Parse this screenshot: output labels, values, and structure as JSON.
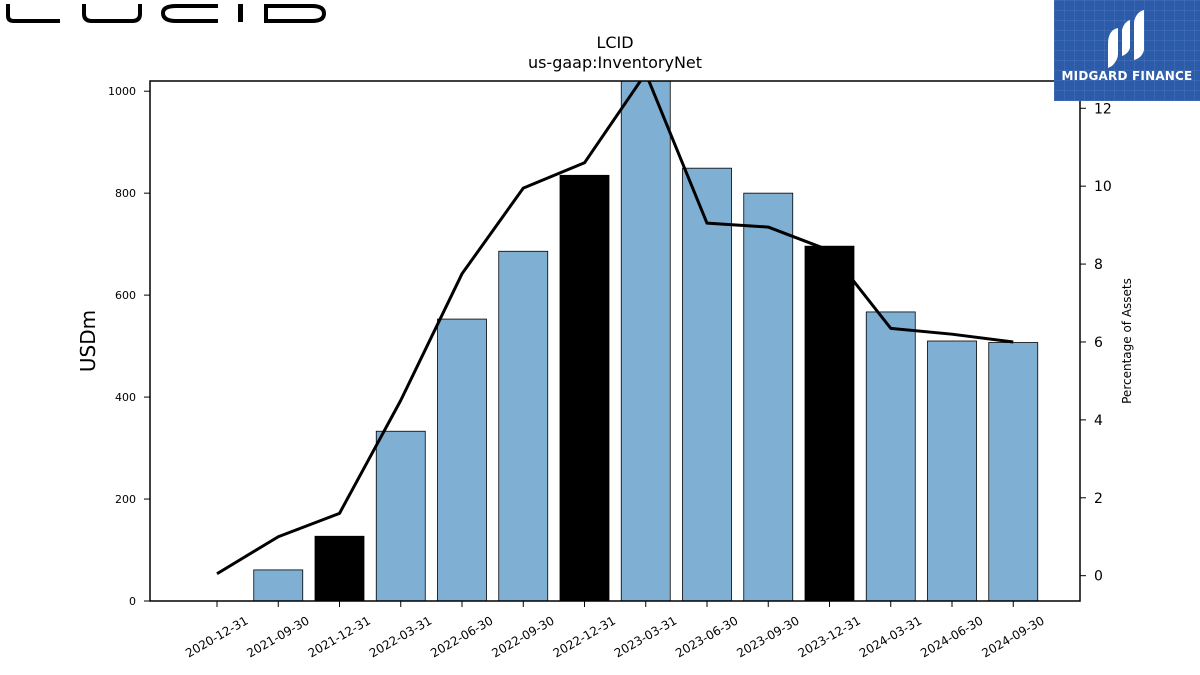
{
  "brand": {
    "icon": "lucid-wordmark-icon",
    "text": "LUCID"
  },
  "logo": {
    "text": "MIDGARD FINANCE",
    "icon": "midgard-logo-icon",
    "background": "#2b5ba9"
  },
  "chart_data": {
    "type": "bar",
    "title": "LCID",
    "subtitle": "us-gaap:InventoryNet",
    "ylabel": "USDm",
    "y2label": "Percentage of Assets",
    "categories": [
      "2020-12-31",
      "2021-09-30",
      "2021-12-31",
      "2022-03-31",
      "2022-06-30",
      "2022-09-30",
      "2022-12-31",
      "2023-03-31",
      "2023-06-30",
      "2023-09-30",
      "2023-12-31",
      "2024-03-31",
      "2024-06-30",
      "2024-09-30"
    ],
    "values": [
      0,
      61,
      127,
      333,
      553,
      686,
      835,
      1020,
      849,
      800,
      696,
      567,
      510,
      507
    ],
    "bar_colors": [
      "#7fb0d4",
      "#7fb0d4",
      "#000000",
      "#7fb0d4",
      "#7fb0d4",
      "#7fb0d4",
      "#000000",
      "#7fb0d4",
      "#7fb0d4",
      "#7fb0d4",
      "#000000",
      "#7fb0d4",
      "#7fb0d4",
      "#7fb0d4"
    ],
    "line_values": [
      0.05,
      1.0,
      1.6,
      4.5,
      7.75,
      9.95,
      10.6,
      12.9,
      9.05,
      8.95,
      8.35,
      6.35,
      6.2,
      6.0
    ],
    "ylim": [
      0,
      1020
    ],
    "y2lim": [
      -0.65,
      12.7
    ],
    "yticks": [
      0,
      200,
      400,
      600,
      800,
      1000
    ],
    "y2ticks": [
      0,
      2,
      4,
      6,
      8,
      10,
      12
    ],
    "grid": false,
    "colors": {
      "bar": "#7fb0d4",
      "bar_highlight": "#000000",
      "line": "#000000"
    }
  }
}
